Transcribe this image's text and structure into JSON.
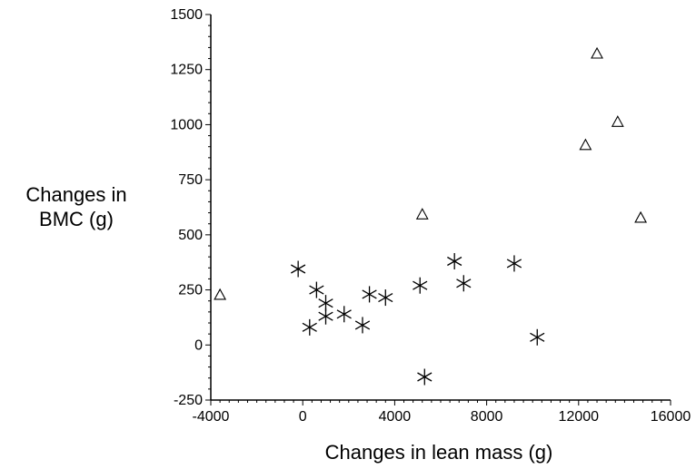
{
  "chart_data": {
    "type": "scatter",
    "xlabel": "Changes in lean mass (g)",
    "ylabel_lines": [
      "Changes in",
      "BMC (g)"
    ],
    "xlim": [
      -4000,
      16000
    ],
    "ylim": [
      -250,
      1500
    ],
    "x_ticks": [
      -4000,
      0,
      4000,
      8000,
      12000,
      16000
    ],
    "y_ticks": [
      -250,
      0,
      250,
      500,
      750,
      1000,
      1250,
      1500
    ],
    "grid": false,
    "series": [
      {
        "marker": "asterisk",
        "points": [
          {
            "x": -200,
            "y": 345
          },
          {
            "x": 600,
            "y": 250
          },
          {
            "x": 1000,
            "y": 190
          },
          {
            "x": 1000,
            "y": 130
          },
          {
            "x": 1800,
            "y": 140
          },
          {
            "x": 300,
            "y": 80
          },
          {
            "x": 2600,
            "y": 90
          },
          {
            "x": 2900,
            "y": 230
          },
          {
            "x": 3600,
            "y": 215
          },
          {
            "x": 5100,
            "y": 270
          },
          {
            "x": 5300,
            "y": -145
          },
          {
            "x": 6600,
            "y": 380
          },
          {
            "x": 7000,
            "y": 280
          },
          {
            "x": 9200,
            "y": 370
          },
          {
            "x": 10200,
            "y": 35
          }
        ]
      },
      {
        "marker": "triangle",
        "points": [
          {
            "x": -3600,
            "y": 230
          },
          {
            "x": 5200,
            "y": 595
          },
          {
            "x": 12300,
            "y": 910
          },
          {
            "x": 12800,
            "y": 1325
          },
          {
            "x": 13700,
            "y": 1015
          },
          {
            "x": 14700,
            "y": 580
          }
        ]
      }
    ]
  }
}
